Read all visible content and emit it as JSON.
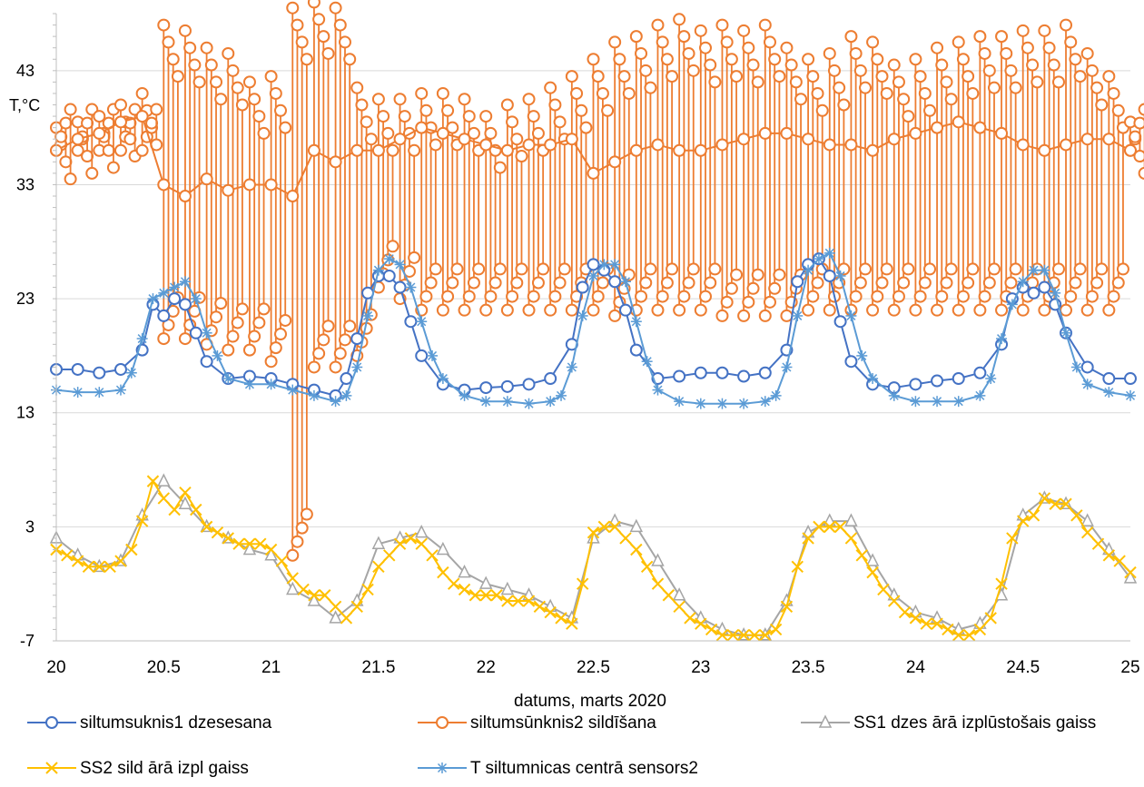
{
  "chart_data": {
    "type": "line",
    "title": "",
    "xlabel": "datums, marts 2020",
    "ylabel": "T,°C",
    "xlim": [
      20,
      25
    ],
    "ylim": [
      -7,
      48
    ],
    "xticks": [
      20,
      20.5,
      21,
      21.5,
      22,
      22.5,
      23,
      23.5,
      24,
      24.5,
      25
    ],
    "xtick_labels": [
      "20",
      "20.5",
      "21",
      "21.5",
      "22",
      "22.5",
      "23",
      "23.5",
      "24",
      "24.5",
      "25"
    ],
    "yticks": [
      -7,
      3,
      13,
      23,
      33,
      43
    ],
    "ytick_labels": [
      "-7",
      "3",
      "13",
      "23",
      "33",
      "43"
    ],
    "grid": "horizontal",
    "legend_position": "bottom",
    "series": [
      {
        "name": "siltumsuknis1 dzesesana",
        "color": "#4472C4",
        "marker": "circle",
        "x": [
          20.0,
          20.1,
          20.2,
          20.3,
          20.4,
          20.45,
          20.5,
          20.55,
          20.6,
          20.65,
          20.7,
          20.8,
          20.9,
          21.0,
          21.1,
          21.2,
          21.3,
          21.35,
          21.4,
          21.45,
          21.5,
          21.55,
          21.6,
          21.65,
          21.7,
          21.8,
          21.9,
          22.0,
          22.1,
          22.2,
          22.3,
          22.4,
          22.45,
          22.5,
          22.55,
          22.6,
          22.65,
          22.7,
          22.8,
          22.9,
          23.0,
          23.1,
          23.2,
          23.3,
          23.4,
          23.45,
          23.5,
          23.55,
          23.6,
          23.65,
          23.7,
          23.8,
          23.9,
          24.0,
          24.1,
          24.2,
          24.3,
          24.4,
          24.45,
          24.5,
          24.55,
          24.6,
          24.65,
          24.7,
          24.8,
          24.9,
          25.0
        ],
        "values": [
          16.8,
          16.8,
          16.5,
          16.8,
          18.5,
          22.5,
          21.5,
          23.0,
          22.5,
          20.0,
          17.5,
          16.0,
          16.2,
          16.0,
          15.5,
          15.0,
          14.5,
          16.0,
          19.5,
          23.5,
          25.0,
          25.0,
          24.0,
          21.0,
          18.0,
          15.5,
          15.0,
          15.2,
          15.3,
          15.5,
          16.0,
          19.0,
          24.0,
          26.0,
          25.5,
          24.5,
          22.0,
          18.5,
          16.0,
          16.2,
          16.5,
          16.5,
          16.2,
          16.5,
          18.5,
          24.5,
          26.0,
          26.5,
          25.0,
          21.0,
          17.5,
          15.5,
          15.2,
          15.5,
          15.8,
          16.0,
          16.5,
          19.0,
          23.0,
          24.0,
          23.5,
          24.0,
          22.5,
          20.0,
          17.0,
          16.0,
          16.0
        ]
      },
      {
        "name": "siltumsūnknis2 sildīšana",
        "color": "#ED7D31",
        "marker": "circle",
        "x": [
          20.0,
          20.1,
          20.2,
          20.3,
          20.4,
          20.5,
          20.6,
          20.7,
          20.8,
          20.9,
          21.0,
          21.1,
          21.2,
          21.3,
          21.4,
          21.5,
          21.6,
          21.7,
          21.8,
          21.9,
          22.0,
          22.1,
          22.2,
          22.3,
          22.4,
          22.5,
          22.6,
          22.7,
          22.8,
          22.9,
          23.0,
          23.1,
          23.2,
          23.3,
          23.4,
          23.5,
          23.6,
          23.7,
          23.8,
          23.9,
          24.0,
          24.1,
          24.2,
          24.3,
          24.4,
          24.5,
          24.6,
          24.7,
          24.8,
          24.9,
          25.0
        ],
        "values": [
          36.0,
          37.0,
          37.5,
          38.5,
          39.0,
          33.0,
          32.0,
          33.5,
          32.5,
          33.0,
          33.0,
          32.0,
          36.0,
          35.0,
          36.0,
          36.0,
          37.0,
          38.0,
          37.5,
          37.0,
          36.5,
          36.0,
          36.5,
          36.5,
          37.0,
          34.0,
          35.0,
          36.0,
          36.5,
          36.0,
          36.0,
          36.5,
          37.0,
          37.5,
          37.5,
          37.0,
          36.5,
          36.5,
          36.0,
          37.0,
          37.5,
          38.0,
          38.5,
          38.0,
          37.5,
          36.5,
          36.0,
          36.5,
          37.0,
          37.0,
          36.0
        ],
        "min": [
          36.0,
          36.0,
          36.0,
          36.0,
          36.0,
          19.5,
          19.5,
          19.0,
          18.5,
          18.5,
          17.5,
          0.5,
          17.0,
          17.0,
          18.0,
          24.0,
          23.0,
          22.0,
          22.0,
          22.0,
          22.0,
          22.0,
          22.0,
          22.0,
          22.0,
          22.0,
          21.5,
          22.0,
          22.0,
          22.0,
          22.0,
          21.5,
          21.5,
          21.5,
          21.5,
          22.0,
          22.0,
          22.0,
          22.0,
          22.0,
          22.0,
          22.0,
          22.0,
          22.0,
          22.0,
          22.0,
          22.0,
          22.0,
          22.0,
          22.0,
          36.0
        ],
        "max": [
          38.0,
          38.5,
          39.0,
          40.0,
          41.0,
          47.0,
          46.5,
          45.0,
          44.5,
          42.0,
          42.5,
          48.5,
          49.0,
          48.5,
          41.5,
          40.5,
          40.5,
          41.0,
          41.0,
          40.5,
          39.0,
          40.0,
          40.5,
          41.5,
          42.5,
          44.0,
          45.5,
          46.0,
          47.0,
          47.5,
          46.5,
          47.0,
          46.5,
          47.0,
          45.0,
          44.0,
          44.5,
          46.0,
          45.5,
          43.5,
          44.0,
          45.0,
          45.5,
          46.0,
          46.0,
          46.5,
          46.5,
          47.0,
          44.5,
          42.5,
          38.5
        ]
      },
      {
        "name": "SS1 dzes ārā izplūstošais gaiss",
        "color": "#A5A5A5",
        "marker": "triangle",
        "x": [
          20.0,
          20.1,
          20.2,
          20.3,
          20.4,
          20.5,
          20.6,
          20.7,
          20.8,
          20.9,
          21.0,
          21.1,
          21.2,
          21.3,
          21.4,
          21.5,
          21.6,
          21.7,
          21.8,
          21.9,
          22.0,
          22.1,
          22.2,
          22.3,
          22.4,
          22.5,
          22.6,
          22.7,
          22.8,
          22.9,
          23.0,
          23.1,
          23.2,
          23.3,
          23.4,
          23.5,
          23.6,
          23.7,
          23.8,
          23.9,
          24.0,
          24.1,
          24.2,
          24.3,
          24.4,
          24.5,
          24.6,
          24.7,
          24.8,
          24.9,
          25.0
        ],
        "values": [
          2.0,
          0.5,
          -0.5,
          0.0,
          4.0,
          7.0,
          5.0,
          3.0,
          2.0,
          1.0,
          0.5,
          -2.5,
          -3.5,
          -5.0,
          -3.5,
          1.5,
          2.0,
          2.5,
          1.0,
          -1.0,
          -2.0,
          -2.5,
          -3.0,
          -4.0,
          -5.0,
          2.0,
          3.5,
          3.0,
          0.0,
          -3.0,
          -5.0,
          -6.0,
          -6.5,
          -6.5,
          -3.5,
          2.5,
          3.5,
          3.5,
          0.0,
          -3.0,
          -4.5,
          -5.0,
          -6.0,
          -5.5,
          -3.0,
          4.0,
          5.5,
          5.0,
          3.5,
          1.0,
          -1.5
        ]
      },
      {
        "name": "SS2 sild ārā izpl gaiss",
        "color": "#FFC000",
        "marker": "x",
        "x": [
          20.0,
          20.05,
          20.1,
          20.15,
          20.2,
          20.25,
          20.3,
          20.35,
          20.4,
          20.45,
          20.5,
          20.55,
          20.6,
          20.65,
          20.7,
          20.75,
          20.8,
          20.85,
          20.9,
          20.95,
          21.0,
          21.05,
          21.1,
          21.15,
          21.2,
          21.25,
          21.3,
          21.35,
          21.4,
          21.45,
          21.5,
          21.55,
          21.6,
          21.65,
          21.7,
          21.75,
          21.8,
          21.85,
          21.9,
          21.95,
          22.0,
          22.05,
          22.1,
          22.15,
          22.2,
          22.25,
          22.3,
          22.35,
          22.4,
          22.45,
          22.5,
          22.55,
          22.6,
          22.65,
          22.7,
          22.75,
          22.8,
          22.85,
          22.9,
          22.95,
          23.0,
          23.05,
          23.1,
          23.15,
          23.2,
          23.25,
          23.3,
          23.35,
          23.4,
          23.45,
          23.5,
          23.55,
          23.6,
          23.65,
          23.7,
          23.75,
          23.8,
          23.85,
          23.9,
          23.95,
          24.0,
          24.05,
          24.1,
          24.15,
          24.2,
          24.25,
          24.3,
          24.35,
          24.4,
          24.45,
          24.5,
          24.55,
          24.6,
          24.65,
          24.7,
          24.75,
          24.8,
          24.85,
          24.9,
          24.95,
          25.0
        ],
        "values": [
          1.0,
          0.5,
          0.0,
          -0.5,
          -0.5,
          -0.5,
          0.0,
          1.0,
          3.5,
          7.0,
          5.5,
          4.5,
          6.0,
          4.5,
          3.0,
          2.5,
          2.0,
          1.5,
          1.5,
          1.5,
          1.0,
          0.0,
          -1.5,
          -2.5,
          -3.0,
          -3.0,
          -4.0,
          -5.0,
          -4.0,
          -2.5,
          -0.5,
          0.5,
          1.5,
          2.0,
          1.5,
          0.5,
          -1.0,
          -2.0,
          -2.5,
          -3.0,
          -3.0,
          -3.0,
          -3.5,
          -3.5,
          -3.5,
          -4.0,
          -4.5,
          -5.0,
          -5.5,
          -2.0,
          2.5,
          3.0,
          3.0,
          2.0,
          1.0,
          -0.5,
          -2.0,
          -3.0,
          -4.0,
          -5.0,
          -5.5,
          -6.0,
          -6.5,
          -6.5,
          -6.5,
          -6.5,
          -6.5,
          -6.0,
          -4.0,
          -0.5,
          2.0,
          3.0,
          3.0,
          3.0,
          2.0,
          0.5,
          -1.0,
          -2.5,
          -3.5,
          -4.5,
          -5.0,
          -5.5,
          -5.5,
          -6.0,
          -6.5,
          -6.5,
          -6.0,
          -5.0,
          -2.0,
          2.0,
          3.5,
          4.0,
          5.5,
          5.0,
          5.0,
          4.0,
          2.5,
          1.5,
          0.5,
          0.0,
          -1.0
        ]
      },
      {
        "name": "T siltumnicas centrā sensors2",
        "color": "#5B9BD5",
        "marker": "asterisk",
        "x": [
          20.0,
          20.1,
          20.2,
          20.3,
          20.35,
          20.4,
          20.45,
          20.5,
          20.55,
          20.6,
          20.65,
          20.7,
          20.75,
          20.8,
          20.9,
          21.0,
          21.1,
          21.2,
          21.3,
          21.35,
          21.4,
          21.45,
          21.5,
          21.55,
          21.6,
          21.65,
          21.7,
          21.75,
          21.8,
          21.9,
          22.0,
          22.1,
          22.2,
          22.3,
          22.35,
          22.4,
          22.45,
          22.5,
          22.55,
          22.6,
          22.65,
          22.7,
          22.75,
          22.8,
          22.9,
          23.0,
          23.1,
          23.2,
          23.3,
          23.35,
          23.4,
          23.45,
          23.5,
          23.55,
          23.6,
          23.65,
          23.7,
          23.75,
          23.8,
          23.9,
          24.0,
          24.1,
          24.2,
          24.3,
          24.35,
          24.4,
          24.45,
          24.5,
          24.55,
          24.6,
          24.65,
          24.7,
          24.75,
          24.8,
          24.9,
          25.0
        ],
        "values": [
          15.0,
          14.8,
          14.8,
          15.0,
          16.5,
          19.5,
          23.0,
          23.5,
          24.0,
          24.5,
          23.0,
          20.0,
          18.0,
          16.0,
          15.5,
          15.5,
          15.0,
          14.5,
          14.0,
          14.5,
          17.0,
          21.5,
          25.5,
          26.5,
          26.0,
          24.0,
          21.0,
          18.0,
          16.0,
          14.5,
          14.0,
          14.0,
          13.8,
          14.0,
          14.5,
          17.0,
          21.5,
          25.0,
          26.0,
          26.0,
          24.5,
          21.0,
          17.5,
          15.0,
          14.0,
          13.8,
          13.8,
          13.8,
          14.0,
          14.5,
          17.0,
          21.5,
          25.5,
          26.5,
          27.0,
          25.0,
          21.5,
          18.0,
          16.0,
          14.5,
          14.0,
          14.0,
          14.0,
          14.5,
          16.0,
          19.5,
          22.5,
          24.5,
          25.5,
          25.5,
          23.5,
          20.0,
          17.0,
          15.5,
          14.8,
          14.5
        ]
      }
    ]
  }
}
